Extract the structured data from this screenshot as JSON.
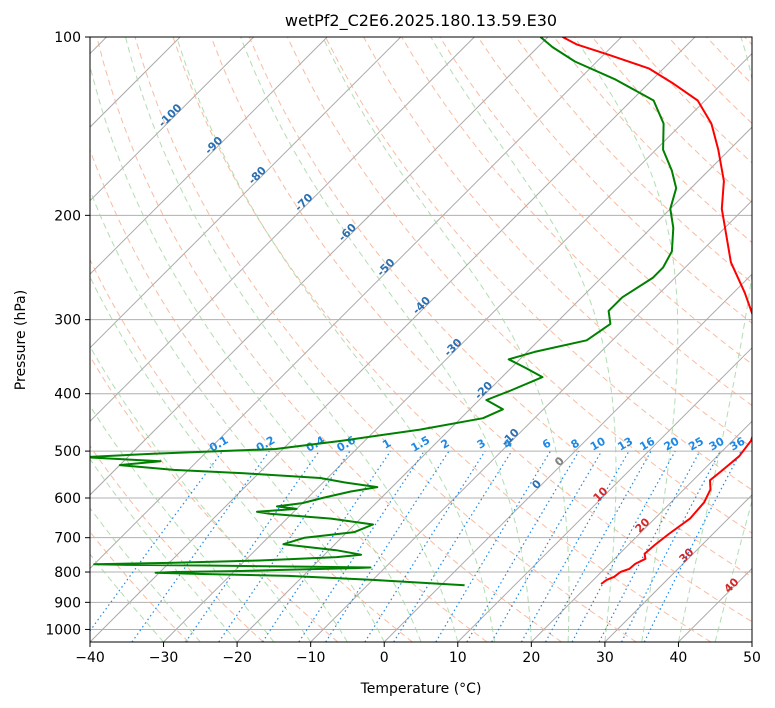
{
  "chart_data": {
    "type": "line",
    "title": "wetPf2_C2E6.2025.180.13.59.E30",
    "xlabel": "Temperature (°C)",
    "ylabel": "Pressure (hPa)",
    "xlim": [
      -40,
      50
    ],
    "ylim": [
      1050,
      100
    ],
    "y_scale": "log",
    "skew": "skew-T",
    "x_ticks": [
      "−40",
      "−30",
      "−20",
      "−10",
      "0",
      "10",
      "20",
      "30",
      "40",
      "50"
    ],
    "y_ticks": [
      {
        "p": 100,
        "label": "100"
      },
      {
        "p": 200,
        "label": "200"
      },
      {
        "p": 300,
        "label": "300"
      },
      {
        "p": 400,
        "label": "400"
      },
      {
        "p": 500,
        "label": "500"
      },
      {
        "p": 600,
        "label": "600"
      },
      {
        "p": 700,
        "label": "700"
      },
      {
        "p": 800,
        "label": "800"
      },
      {
        "p": 900,
        "label": "900"
      },
      {
        "p": 1000,
        "label": "1000"
      }
    ],
    "series": [
      {
        "color": "#ff0000",
        "points": [
          [
            838,
            21.6
          ],
          [
            825,
            21.8
          ],
          [
            815,
            22.4
          ],
          [
            800,
            22.6
          ],
          [
            790,
            23.4
          ],
          [
            775,
            23.5
          ],
          [
            760,
            24.2
          ],
          [
            745,
            23.4
          ],
          [
            720,
            23.6
          ],
          [
            690,
            24.0
          ],
          [
            650,
            24.8
          ],
          [
            610,
            24.5
          ],
          [
            580,
            23.6
          ],
          [
            560,
            22.3
          ],
          [
            540,
            22.6
          ],
          [
            510,
            23.0
          ],
          [
            480,
            22.5
          ],
          [
            450,
            21.0
          ],
          [
            420,
            19.5
          ],
          [
            390,
            16.5
          ],
          [
            360,
            13.0
          ],
          [
            330,
            10.0
          ],
          [
            300,
            6.5
          ],
          [
            270,
            1.5
          ],
          [
            240,
            -4.5
          ],
          [
            215,
            -9.0
          ],
          [
            195,
            -13.0
          ],
          [
            175,
            -16.5
          ],
          [
            155,
            -21.5
          ],
          [
            140,
            -26.0
          ],
          [
            128,
            -31.0
          ],
          [
            120,
            -36.5
          ],
          [
            113,
            -42.0
          ],
          [
            107,
            -49.5
          ],
          [
            103,
            -55.0
          ],
          [
            100,
            -58.0
          ]
        ]
      },
      {
        "color": "#008000",
        "points": [
          [
            842,
            3.2
          ],
          [
            825,
            -10.0
          ],
          [
            812,
            -22.0
          ],
          [
            806,
            -34.0
          ],
          [
            802,
            -40.5
          ],
          [
            800,
            -38.0
          ],
          [
            797,
            -30.0
          ],
          [
            792,
            -21.0
          ],
          [
            788,
            -14.0
          ],
          [
            786,
            -12.0
          ],
          [
            784,
            -20.0
          ],
          [
            780,
            -35.0
          ],
          [
            778,
            -45.0
          ],
          [
            776,
            -50.0
          ],
          [
            772,
            -40.0
          ],
          [
            765,
            -28.0
          ],
          [
            755,
            -18.0
          ],
          [
            748,
            -15.0
          ],
          [
            735,
            -19.0
          ],
          [
            718,
            -27.0
          ],
          [
            700,
            -25.0
          ],
          [
            685,
            -19.0
          ],
          [
            665,
            -17.5
          ],
          [
            650,
            -24.0
          ],
          [
            638,
            -33.0
          ],
          [
            633,
            -35.0
          ],
          [
            626,
            -30.0
          ],
          [
            620,
            -33.0
          ],
          [
            612,
            -30.0
          ],
          [
            600,
            -28.0
          ],
          [
            585,
            -25.0
          ],
          [
            575,
            -22.0
          ],
          [
            565,
            -27.0
          ],
          [
            555,
            -31.0
          ],
          [
            545,
            -42.0
          ],
          [
            538,
            -52.0
          ],
          [
            528,
            -60.0
          ],
          [
            520,
            -55.0
          ],
          [
            512,
            -66.0
          ],
          [
            505,
            -57.0
          ],
          [
            496,
            -41.0
          ],
          [
            480,
            -33.0
          ],
          [
            460,
            -24.0
          ],
          [
            440,
            -17.0
          ],
          [
            425,
            -15.5
          ],
          [
            410,
            -19.0
          ],
          [
            395,
            -17.0
          ],
          [
            375,
            -14.5
          ],
          [
            362,
            -18.0
          ],
          [
            350,
            -21.5
          ],
          [
            340,
            -19.0
          ],
          [
            325,
            -13.5
          ],
          [
            305,
            -12.5
          ],
          [
            290,
            -14.5
          ],
          [
            275,
            -14.5
          ],
          [
            255,
            -13.0
          ],
          [
            245,
            -13.0
          ],
          [
            230,
            -14.0
          ],
          [
            210,
            -17.0
          ],
          [
            195,
            -20.0
          ],
          [
            180,
            -22.0
          ],
          [
            168,
            -25.0
          ],
          [
            155,
            -29.0
          ],
          [
            140,
            -32.5
          ],
          [
            128,
            -37.0
          ],
          [
            118,
            -45.0
          ],
          [
            110,
            -53.0
          ],
          [
            104,
            -58.0
          ],
          [
            100,
            -61.0
          ]
        ]
      }
    ],
    "background_lines": {
      "isotherms": "gray solid",
      "dry_adiabats": "light red dashed",
      "moist_adiabats": "light green dashed",
      "mixing_ratio": "blue dotted"
    },
    "mixing_ratio_labels": [
      "0.1",
      "0.2",
      "0.4",
      "0.6",
      "1",
      "1.5",
      "2",
      "3",
      "4",
      "6",
      "8",
      "10",
      "13",
      "16",
      "20",
      "25",
      "30",
      "36"
    ],
    "annotations_blue": [
      "-100",
      "-90",
      "-80",
      "-70",
      "-60",
      "-50",
      "-40",
      "-30",
      "-20",
      "-10",
      "0"
    ],
    "annotations_red": [
      "0",
      "10",
      "20",
      "30",
      "40"
    ],
    "colors": {
      "temperature": "#ff0000",
      "dewpoint": "#008000",
      "isotherm": "#aaaaaa",
      "dry_adiabat": "#f4a582",
      "moist_adiabat": "#9fd49f",
      "mixing_ratio": "#1e88e5",
      "blue_annotation": "#2c6fb0",
      "red_annotation": "#d62728",
      "gray_annotation": "#808080",
      "grid": "#b0b0b0"
    }
  }
}
